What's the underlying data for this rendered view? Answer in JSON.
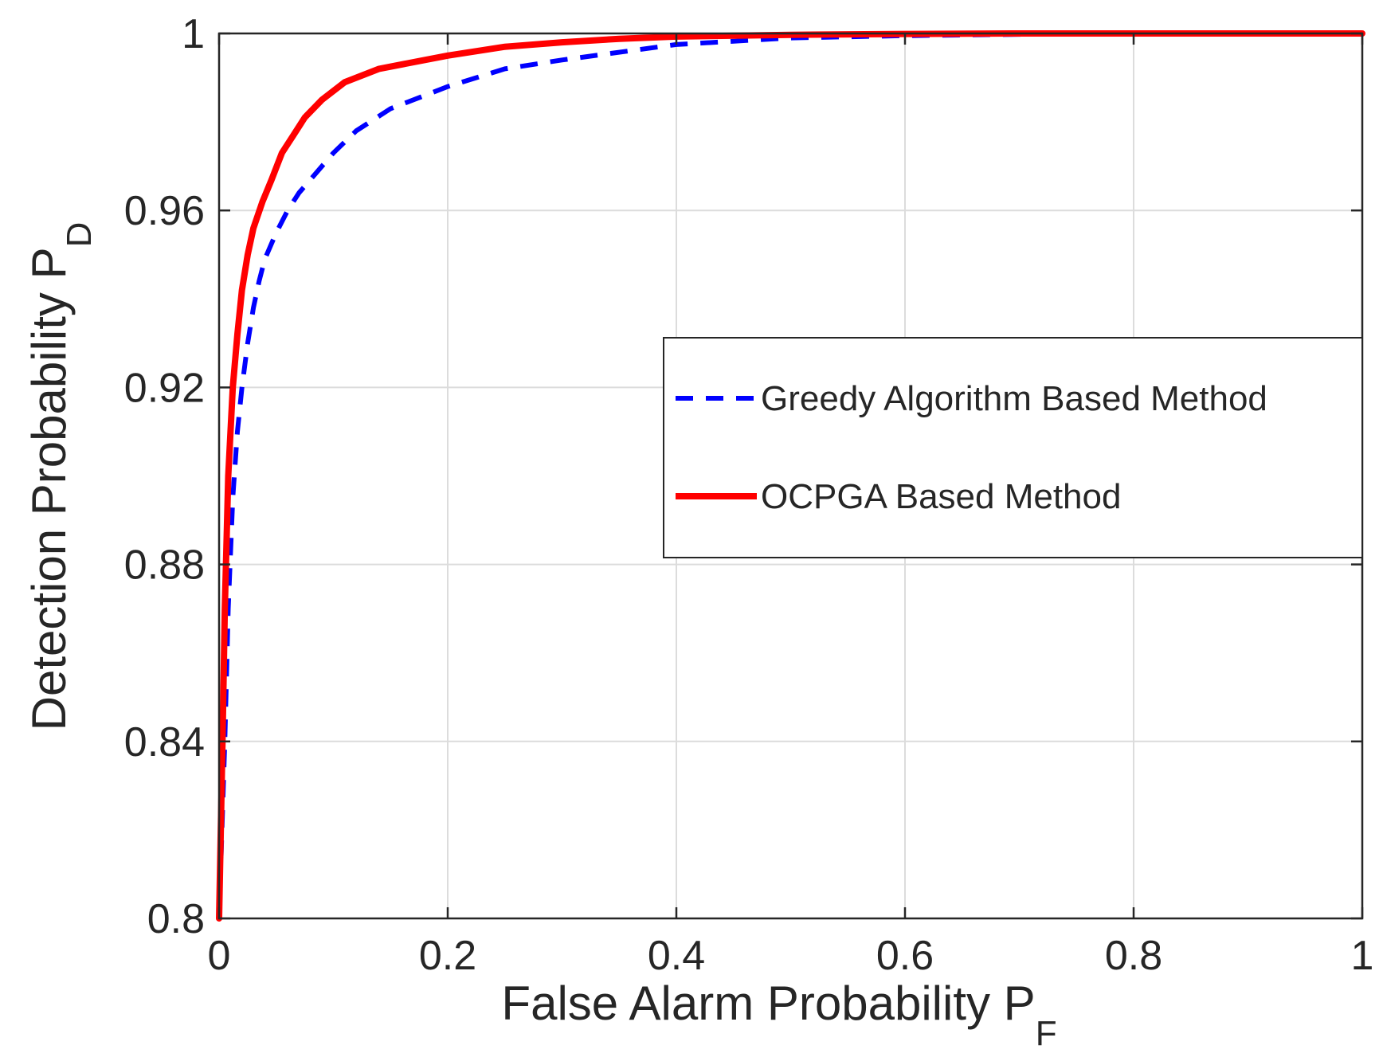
{
  "chart_data": {
    "type": "line",
    "title": "",
    "xlabel": "False Alarm Probability P",
    "xlabel_sub": "F",
    "ylabel": "Detection Probability P",
    "ylabel_sub": "D",
    "xlim": [
      0,
      1
    ],
    "ylim": [
      0.8,
      1
    ],
    "xticks": [
      0,
      0.2,
      0.4,
      0.6,
      0.8,
      1
    ],
    "xtick_labels": [
      "0",
      "0.2",
      "0.4",
      "0.6",
      "0.8",
      "1"
    ],
    "yticks": [
      0.8,
      0.84,
      0.88,
      0.92,
      0.96,
      1
    ],
    "ytick_labels": [
      "0.8",
      "0.84",
      "0.88",
      "0.92",
      "0.96",
      "1"
    ],
    "grid": true,
    "legend_position": "right-middle",
    "colors": {
      "greedy": "#0000ff",
      "ocpga": "#ff0000",
      "grid": "#dcdcdc",
      "axes": "#262626"
    },
    "series": [
      {
        "name": "Greedy Algorithm Based Method",
        "style": "dashed",
        "color": "#0000ff",
        "x": [
          0.0,
          0.005,
          0.008,
          0.012,
          0.016,
          0.02,
          0.025,
          0.03,
          0.035,
          0.04,
          0.05,
          0.06,
          0.07,
          0.08,
          0.1,
          0.12,
          0.15,
          0.2,
          0.25,
          0.3,
          0.4,
          0.5,
          0.6,
          0.7,
          0.8,
          0.9,
          1.0
        ],
        "y": [
          0.8,
          0.84,
          0.87,
          0.895,
          0.91,
          0.92,
          0.93,
          0.938,
          0.944,
          0.949,
          0.955,
          0.96,
          0.964,
          0.967,
          0.973,
          0.978,
          0.983,
          0.988,
          0.992,
          0.994,
          0.9975,
          0.999,
          0.9995,
          0.9998,
          1.0,
          1.0,
          1.0
        ]
      },
      {
        "name": "OCPGA Based Method",
        "style": "solid",
        "color": "#ff0000",
        "x": [
          0.0,
          0.003,
          0.005,
          0.008,
          0.012,
          0.016,
          0.02,
          0.025,
          0.03,
          0.038,
          0.046,
          0.055,
          0.065,
          0.075,
          0.09,
          0.11,
          0.14,
          0.18,
          0.2,
          0.25,
          0.3,
          0.35,
          0.4,
          0.5,
          0.6,
          0.7,
          0.8,
          0.9,
          1.0
        ],
        "y": [
          0.8,
          0.84,
          0.87,
          0.9,
          0.92,
          0.932,
          0.942,
          0.95,
          0.956,
          0.962,
          0.967,
          0.973,
          0.977,
          0.981,
          0.985,
          0.989,
          0.992,
          0.994,
          0.995,
          0.997,
          0.998,
          0.9988,
          0.9993,
          0.9997,
          0.9999,
          1.0,
          1.0,
          1.0,
          1.0
        ]
      }
    ]
  }
}
